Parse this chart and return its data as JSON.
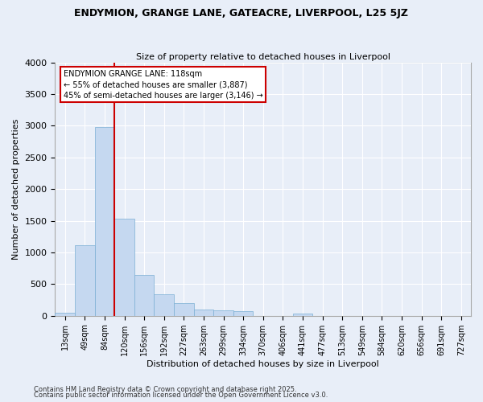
{
  "title1": "ENDYMION, GRANGE LANE, GATEACRE, LIVERPOOL, L25 5JZ",
  "title2": "Size of property relative to detached houses in Liverpool",
  "xlabel": "Distribution of detached houses by size in Liverpool",
  "ylabel": "Number of detached properties",
  "categories": [
    "13sqm",
    "49sqm",
    "84sqm",
    "120sqm",
    "156sqm",
    "192sqm",
    "227sqm",
    "263sqm",
    "299sqm",
    "334sqm",
    "370sqm",
    "406sqm",
    "441sqm",
    "477sqm",
    "513sqm",
    "549sqm",
    "584sqm",
    "620sqm",
    "656sqm",
    "691sqm",
    "727sqm"
  ],
  "values": [
    50,
    1110,
    2980,
    1530,
    650,
    340,
    200,
    95,
    90,
    70,
    0,
    0,
    35,
    0,
    0,
    0,
    0,
    0,
    0,
    0,
    0
  ],
  "bar_color": "#c5d8f0",
  "bar_edge_color": "#7bafd4",
  "vline_color": "#cc0000",
  "annotation_text": "ENDYMION GRANGE LANE: 118sqm\n← 55% of detached houses are smaller (3,887)\n45% of semi-detached houses are larger (3,146) →",
  "annotation_box_color": "#cc0000",
  "annotation_fontsize": 7,
  "ylim": [
    0,
    4000
  ],
  "yticks": [
    0,
    500,
    1000,
    1500,
    2000,
    2500,
    3000,
    3500,
    4000
  ],
  "footer_line1": "Contains HM Land Registry data © Crown copyright and database right 2025.",
  "footer_line2": "Contains public sector information licensed under the Open Government Licence v3.0.",
  "bg_color": "#e8eef8",
  "plot_bg_color": "#e8eef8",
  "grid_color": "#ffffff",
  "title1_fontsize": 9,
  "title2_fontsize": 8,
  "xlabel_fontsize": 8,
  "ylabel_fontsize": 8,
  "xtick_fontsize": 7,
  "ytick_fontsize": 8
}
